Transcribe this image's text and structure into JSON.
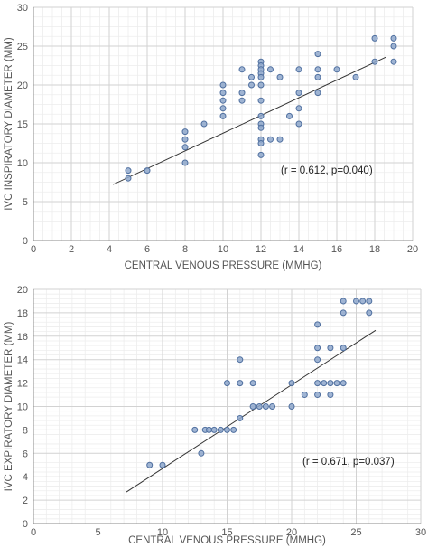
{
  "chart_data": [
    {
      "type": "scatter",
      "title": "",
      "xlabel": "CENTRAL VENOUS PRESSURE (MMHG)",
      "ylabel": "IVC INSPIRATORY DIAMETER (MM)",
      "xlim": [
        0,
        20
      ],
      "ylim": [
        0,
        30
      ],
      "xticks": [
        0,
        2,
        4,
        6,
        8,
        10,
        12,
        14,
        16,
        18,
        20
      ],
      "yticks": [
        0,
        5,
        10,
        15,
        20,
        25,
        30
      ],
      "grid": true,
      "annotation": "(r = 0.612, p=0.040)",
      "trendline": {
        "x1": 4.2,
        "y1": 7.2,
        "x2": 18.6,
        "y2": 23.6
      },
      "points": [
        {
          "x": 5,
          "y": 9
        },
        {
          "x": 5,
          "y": 8
        },
        {
          "x": 6,
          "y": 9
        },
        {
          "x": 8,
          "y": 14
        },
        {
          "x": 8,
          "y": 13
        },
        {
          "x": 8,
          "y": 12
        },
        {
          "x": 8,
          "y": 10
        },
        {
          "x": 9,
          "y": 15
        },
        {
          "x": 10,
          "y": 20
        },
        {
          "x": 10,
          "y": 19
        },
        {
          "x": 10,
          "y": 18
        },
        {
          "x": 10,
          "y": 17
        },
        {
          "x": 10,
          "y": 16
        },
        {
          "x": 11,
          "y": 22
        },
        {
          "x": 11,
          "y": 19
        },
        {
          "x": 11,
          "y": 18
        },
        {
          "x": 11.5,
          "y": 21
        },
        {
          "x": 11.5,
          "y": 20
        },
        {
          "x": 12,
          "y": 23
        },
        {
          "x": 12,
          "y": 22.5
        },
        {
          "x": 12,
          "y": 22
        },
        {
          "x": 12,
          "y": 21.5
        },
        {
          "x": 12,
          "y": 21
        },
        {
          "x": 12,
          "y": 20
        },
        {
          "x": 12,
          "y": 18
        },
        {
          "x": 12,
          "y": 16
        },
        {
          "x": 12,
          "y": 15
        },
        {
          "x": 12,
          "y": 14.5
        },
        {
          "x": 12,
          "y": 13
        },
        {
          "x": 12,
          "y": 12.5
        },
        {
          "x": 12,
          "y": 11
        },
        {
          "x": 12.5,
          "y": 13
        },
        {
          "x": 12.5,
          "y": 22
        },
        {
          "x": 13,
          "y": 21
        },
        {
          "x": 13,
          "y": 13
        },
        {
          "x": 13.5,
          "y": 16
        },
        {
          "x": 14,
          "y": 22
        },
        {
          "x": 14,
          "y": 19
        },
        {
          "x": 14,
          "y": 17
        },
        {
          "x": 14,
          "y": 15
        },
        {
          "x": 15,
          "y": 24
        },
        {
          "x": 15,
          "y": 22
        },
        {
          "x": 15,
          "y": 21
        },
        {
          "x": 15,
          "y": 19
        },
        {
          "x": 16,
          "y": 22
        },
        {
          "x": 17,
          "y": 21
        },
        {
          "x": 18,
          "y": 26
        },
        {
          "x": 18,
          "y": 23
        },
        {
          "x": 19,
          "y": 26
        },
        {
          "x": 19,
          "y": 25
        },
        {
          "x": 19,
          "y": 23
        }
      ]
    },
    {
      "type": "scatter",
      "title": "",
      "xlabel": "CENTRAL VENOUS PRESSURE (MMHG)",
      "ylabel": "IVC EXPIRATORY DIAMETER (MM)",
      "xlim": [
        0,
        30
      ],
      "ylim": [
        0,
        20
      ],
      "xticks": [
        0,
        5,
        10,
        15,
        20,
        25,
        30
      ],
      "yticks": [
        0,
        2,
        4,
        6,
        8,
        10,
        12,
        14,
        16,
        18,
        20
      ],
      "grid": true,
      "annotation": "(r = 0.671, p=0.037)",
      "trendline": {
        "x1": 7.2,
        "y1": 2.7,
        "x2": 26.5,
        "y2": 16.5
      },
      "points": [
        {
          "x": 9,
          "y": 5
        },
        {
          "x": 10,
          "y": 5
        },
        {
          "x": 12.5,
          "y": 8
        },
        {
          "x": 13,
          "y": 6
        },
        {
          "x": 13.3,
          "y": 8
        },
        {
          "x": 13.6,
          "y": 8
        },
        {
          "x": 14,
          "y": 8
        },
        {
          "x": 14.5,
          "y": 8
        },
        {
          "x": 15,
          "y": 8
        },
        {
          "x": 15.5,
          "y": 8
        },
        {
          "x": 15,
          "y": 12
        },
        {
          "x": 16,
          "y": 14
        },
        {
          "x": 16,
          "y": 12
        },
        {
          "x": 16,
          "y": 9
        },
        {
          "x": 17,
          "y": 12
        },
        {
          "x": 17,
          "y": 10
        },
        {
          "x": 17.5,
          "y": 10
        },
        {
          "x": 18,
          "y": 10
        },
        {
          "x": 18.5,
          "y": 10
        },
        {
          "x": 20,
          "y": 12
        },
        {
          "x": 20,
          "y": 10
        },
        {
          "x": 21,
          "y": 11
        },
        {
          "x": 22,
          "y": 17
        },
        {
          "x": 22,
          "y": 15
        },
        {
          "x": 22,
          "y": 14
        },
        {
          "x": 22,
          "y": 12
        },
        {
          "x": 22,
          "y": 11
        },
        {
          "x": 22.5,
          "y": 12
        },
        {
          "x": 23,
          "y": 15
        },
        {
          "x": 23,
          "y": 12
        },
        {
          "x": 23,
          "y": 11
        },
        {
          "x": 23.5,
          "y": 12
        },
        {
          "x": 24,
          "y": 19
        },
        {
          "x": 24,
          "y": 18
        },
        {
          "x": 24,
          "y": 15
        },
        {
          "x": 24,
          "y": 12
        },
        {
          "x": 25,
          "y": 19
        },
        {
          "x": 25.5,
          "y": 19
        },
        {
          "x": 26,
          "y": 19
        },
        {
          "x": 26,
          "y": 18
        }
      ]
    }
  ]
}
